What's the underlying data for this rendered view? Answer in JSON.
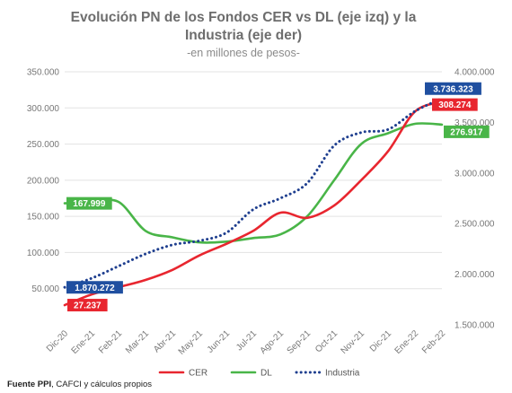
{
  "chart_data": {
    "type": "line",
    "title_line1": "Evolución PN de los Fondos CER vs DL (eje izq) y la",
    "title_line2": "Industria (eje der)",
    "subtitle": "-en millones de pesos-",
    "categories": [
      "Dic-20",
      "Ene-21",
      "Feb-21",
      "Mar-21",
      "Abr-21",
      "May-21",
      "Jun-21",
      "Jul-21",
      "Ago-21",
      "Sep-21",
      "Oct-21",
      "Nov-21",
      "Dic-21",
      "Ene-22",
      "Feb-22"
    ],
    "y_left": {
      "range": [
        0,
        350000
      ],
      "ticks": [
        50000,
        100000,
        150000,
        200000,
        250000,
        300000,
        350000
      ],
      "tick_labels": [
        "50.000",
        "100.000",
        "150.000",
        "200.000",
        "250.000",
        "300.000",
        "350.000"
      ]
    },
    "y_right": {
      "range": [
        1500000,
        4000000
      ],
      "ticks": [
        1500000,
        2000000,
        2500000,
        3000000,
        3500000,
        4000000
      ],
      "tick_labels": [
        "1.500.000",
        "2.000.000",
        "2.500.000",
        "3.000.000",
        "3.500.000",
        "4.000.000"
      ]
    },
    "grid": true,
    "legend_position": "bottom-right",
    "series": [
      {
        "name": "CER",
        "axis": "left",
        "color": "#e8262f",
        "style": "solid",
        "values": [
          27237,
          42000,
          52000,
          62000,
          76000,
          96000,
          112000,
          130000,
          155000,
          148000,
          165000,
          200000,
          240000,
          295000,
          308274
        ],
        "start_label": "27.237",
        "end_label": "308.274"
      },
      {
        "name": "DL",
        "axis": "left",
        "color": "#49b548",
        "style": "solid",
        "values": [
          167999,
          169000,
          170000,
          130000,
          121000,
          114000,
          115000,
          120000,
          125000,
          150000,
          200000,
          250000,
          265000,
          278000,
          276917
        ],
        "start_label": "167.999",
        "end_label": "276.917"
      },
      {
        "name": "Industria",
        "axis": "right",
        "color": "#1f3f8f",
        "style": "dotted",
        "values": [
          1870272,
          1960000,
          2080000,
          2200000,
          2290000,
          2330000,
          2410000,
          2640000,
          2750000,
          2900000,
          3270000,
          3400000,
          3430000,
          3610000,
          3736323
        ],
        "start_label": "1.870.272",
        "end_label": "3.736.323"
      }
    ]
  },
  "source": {
    "bold": "Fuente PPI",
    "rest": ", CAFCI y cálculos propios"
  },
  "colors": {
    "cer_label_bg": "#e8262f",
    "dl_label_bg": "#49b548",
    "industria_label_bg": "#1f4fa0"
  }
}
